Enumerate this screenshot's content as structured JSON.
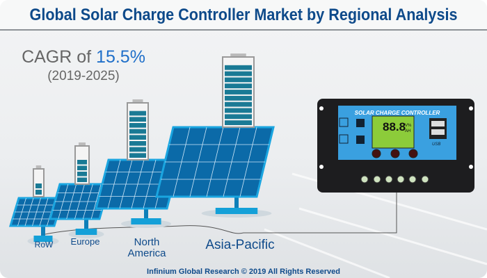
{
  "title": "Global Solar Charge Controller Market by Regional Analysis",
  "cagr": {
    "prefix": "CAGR of",
    "value": "15.5%",
    "period": "(2019-2025)"
  },
  "regions": [
    {
      "name": "RoW",
      "battery_level": 0.4
    },
    {
      "name": "Europe",
      "battery_level": 0.7
    },
    {
      "name": "North America",
      "line1": "North",
      "line2": "America",
      "battery_level": 0.85
    },
    {
      "name": "Asia-Pacific",
      "battery_level": 0.9
    }
  ],
  "controller": {
    "label": "SOLAR CHARGE CONTROLLER",
    "display": "88.8",
    "units1": "V%",
    "units2": "AH",
    "usb": "USB"
  },
  "colors": {
    "title": "#0e4a8a",
    "accent": "#1f6fc9",
    "panel": "#1e88c8",
    "controller": "#3aa0e0"
  },
  "footer": "Infinium Global Research © 2019 All Rights Reserved"
}
